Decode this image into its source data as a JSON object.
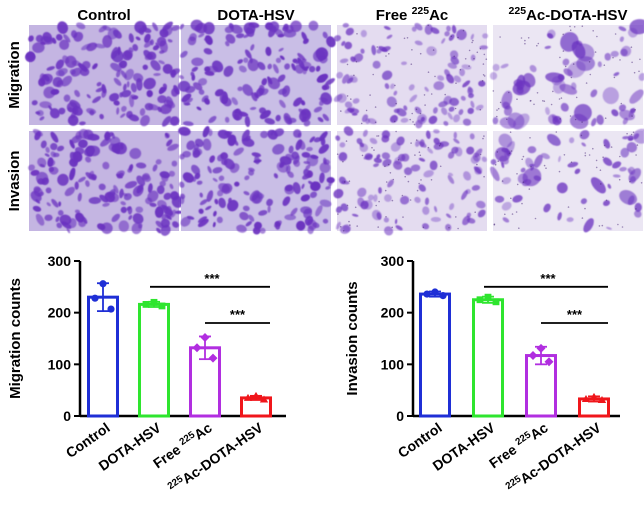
{
  "panel_titles": [
    {
      "pre": "",
      "sup": "",
      "post": "Control"
    },
    {
      "pre": "",
      "sup": "",
      "post": "DOTA-HSV"
    },
    {
      "pre": "Free ",
      "sup": "225",
      "post": "Ac"
    },
    {
      "pre": "",
      "sup": "225",
      "post": "Ac-DOTA-HSV"
    }
  ],
  "row_labels": [
    "Migration",
    "Invasion"
  ],
  "micrographs": {
    "background_colors": [
      "#c4b5e2",
      "#c9bee6",
      "#e4dcf0",
      "#ebe6f3"
    ],
    "stain_color": "#6a32c0",
    "stain_density": [
      0.95,
      0.9,
      0.55,
      0.3
    ]
  },
  "significance": "***",
  "chart_data": [
    {
      "type": "bar",
      "ylabel": "Migration counts",
      "categories": [
        {
          "pre": "",
          "sup": "",
          "post": "Control"
        },
        {
          "pre": "",
          "sup": "",
          "post": "DOTA-HSV"
        },
        {
          "pre": "Free ",
          "sup": "225",
          "post": "Ac"
        },
        {
          "pre": "",
          "sup": "225",
          "post": "Ac-DOTA-HSV"
        }
      ],
      "values": [
        230,
        216,
        132,
        35
      ],
      "errors": [
        27,
        5,
        22,
        4
      ],
      "points": [
        [
          256,
          228,
          207
        ],
        [
          220,
          216,
          213
        ],
        [
          152,
          132,
          112
        ],
        [
          39,
          35,
          32
        ]
      ],
      "colors": [
        "#1f2fd6",
        "#2ee52e",
        "#b12ee0",
        "#f0161b"
      ],
      "markers": [
        "circle",
        "square",
        "diamond",
        "triangle"
      ],
      "ylim": [
        0,
        300
      ],
      "yticks": [
        0,
        100,
        200,
        300
      ],
      "brackets": [
        {
          "from": 1,
          "to": 3,
          "label": "***"
        },
        {
          "from": 2,
          "to": 3,
          "label": "***"
        }
      ]
    },
    {
      "type": "bar",
      "ylabel": "Invasion counts",
      "categories": [
        {
          "pre": "",
          "sup": "",
          "post": "Control"
        },
        {
          "pre": "",
          "sup": "",
          "post": "DOTA-HSV"
        },
        {
          "pre": "Free ",
          "sup": "225",
          "post": "Ac"
        },
        {
          "pre": "",
          "sup": "225",
          "post": "Ac-DOTA-HSV"
        }
      ],
      "values": [
        236,
        225,
        117,
        33
      ],
      "errors": [
        5,
        6,
        17,
        5
      ],
      "points": [
        [
          240,
          236,
          233
        ],
        [
          230,
          225,
          221
        ],
        [
          131,
          117,
          105
        ],
        [
          37,
          33,
          31
        ]
      ],
      "colors": [
        "#1f2fd6",
        "#2ee52e",
        "#b12ee0",
        "#f0161b"
      ],
      "markers": [
        "circle",
        "square",
        "diamond",
        "triangle"
      ],
      "ylim": [
        0,
        300
      ],
      "yticks": [
        0,
        100,
        200,
        300
      ],
      "brackets": [
        {
          "from": 1,
          "to": 3,
          "label": "***"
        },
        {
          "from": 2,
          "to": 3,
          "label": "***"
        }
      ]
    }
  ]
}
